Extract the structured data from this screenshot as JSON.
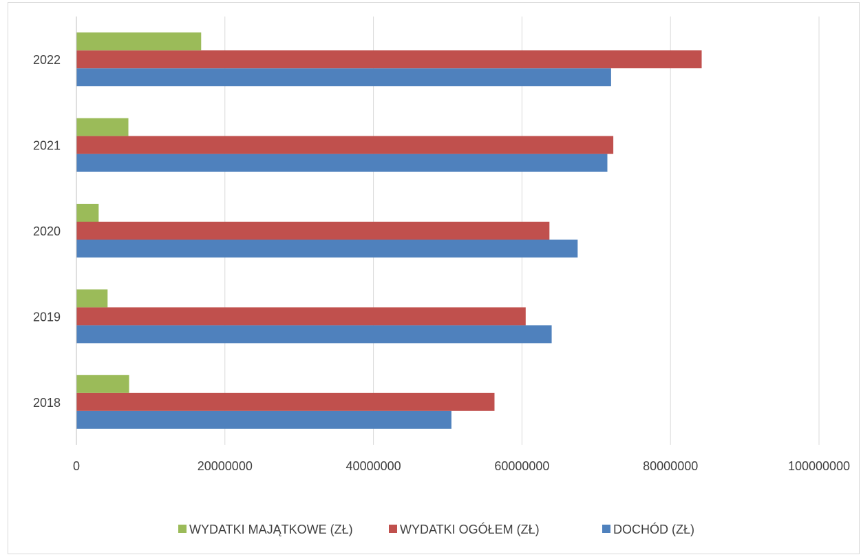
{
  "chart_data": {
    "type": "bar",
    "orientation": "horizontal",
    "title": "",
    "xlabel": "",
    "ylabel": "",
    "categories": [
      "2018",
      "2019",
      "2020",
      "2021",
      "2022"
    ],
    "xlim": [
      0,
      100000000
    ],
    "x_ticks": [
      "0",
      "20000000",
      "40000000",
      "60000000",
      "80000000",
      "100000000"
    ],
    "grid": true,
    "legend_position": "bottom",
    "series": [
      {
        "name": "DOCHÓD (ZŁ)",
        "color": "#4f81bd",
        "values": [
          50500000,
          64000000,
          67500000,
          71500000,
          72000000
        ]
      },
      {
        "name": "WYDATKI OGÓŁEM (ZŁ)",
        "color": "#c0504d",
        "values": [
          56300000,
          60500000,
          63700000,
          72300000,
          84200000
        ]
      },
      {
        "name": "WYDATKI MAJĄTKOWE (ZŁ)",
        "color": "#9bbb59",
        "values": [
          7100000,
          4200000,
          3000000,
          7000000,
          16800000
        ]
      }
    ]
  }
}
